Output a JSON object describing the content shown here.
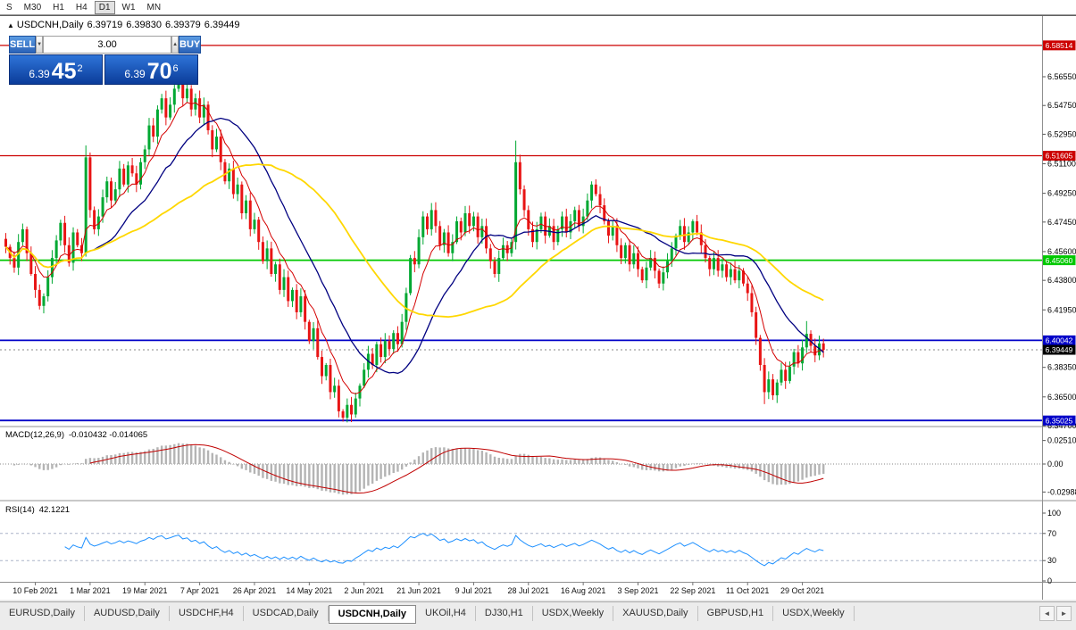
{
  "icons": {
    "marker": "▲",
    "spinner_up": "▲",
    "spinner_down": "▼",
    "tab_left": "◄",
    "tab_right": "►"
  },
  "toolbar": {
    "buttons": [
      "S",
      "M30",
      "H1",
      "H4",
      "D1",
      "W1",
      "MN"
    ],
    "active": "D1"
  },
  "chart": {
    "symbol_period": "USDCNH,Daily",
    "open": "6.39719",
    "high": "6.39830",
    "low": "6.39379",
    "close": "6.39449"
  },
  "one_click": {
    "sell_label": "SELL",
    "buy_label": "BUY",
    "volume": "3.00",
    "bid_small": "6.39",
    "bid_big": "45",
    "bid_sup": "2",
    "ask_small": "6.39",
    "ask_big": "70",
    "ask_sup": "6"
  },
  "chart_data": {
    "type": "candlestick",
    "symbol": "USDCNH",
    "period": "Daily",
    "candle_colors": {
      "up": "#00a832",
      "down": "#e81414"
    },
    "closes": [
      6.459,
      6.452,
      6.446,
      6.462,
      6.47,
      6.455,
      6.442,
      6.432,
      6.422,
      6.428,
      6.44,
      6.452,
      6.463,
      6.474,
      6.46,
      6.449,
      6.468,
      6.46,
      6.455,
      6.515,
      6.482,
      6.47,
      6.478,
      6.49,
      6.5,
      6.488,
      6.495,
      6.508,
      6.498,
      6.51,
      6.505,
      6.498,
      6.512,
      6.52,
      6.535,
      6.528,
      6.545,
      6.552,
      6.54,
      6.548,
      6.558,
      6.565,
      6.552,
      6.558,
      6.545,
      6.552,
      6.54,
      6.548,
      6.532,
      6.52,
      6.528,
      6.512,
      6.5,
      6.508,
      6.492,
      6.498,
      6.48,
      6.488,
      6.47,
      6.476,
      6.462,
      6.45,
      6.458,
      6.442,
      6.448,
      6.432,
      6.44,
      6.425,
      6.432,
      6.418,
      6.428,
      6.412,
      6.4,
      6.408,
      6.39,
      6.378,
      6.385,
      6.368,
      6.372,
      6.356,
      6.352,
      6.36,
      6.354,
      6.364,
      6.372,
      6.382,
      6.392,
      6.385,
      6.398,
      6.39,
      6.4,
      6.395,
      6.405,
      6.398,
      6.412,
      6.43,
      6.452,
      6.448,
      6.465,
      6.478,
      6.47,
      6.482,
      6.472,
      6.46,
      6.468,
      6.455,
      6.462,
      6.475,
      6.468,
      6.48,
      6.472,
      6.478,
      6.465,
      6.472,
      6.458,
      6.45,
      6.442,
      6.452,
      6.46,
      6.455,
      6.462,
      6.512,
      6.495,
      6.482,
      6.47,
      6.462,
      6.47,
      6.478,
      6.466,
      6.472,
      6.462,
      6.47,
      6.478,
      6.468,
      6.475,
      6.482,
      6.472,
      6.478,
      6.488,
      6.498,
      6.492,
      6.485,
      6.475,
      6.466,
      6.472,
      6.46,
      6.452,
      6.46,
      6.448,
      6.455,
      6.445,
      6.438,
      6.446,
      6.452,
      6.444,
      6.436,
      6.443,
      6.45,
      6.458,
      6.466,
      6.472,
      6.462,
      6.468,
      6.475,
      6.468,
      6.46,
      6.452,
      6.445,
      6.452,
      6.444,
      6.448,
      6.44,
      6.445,
      6.438,
      6.444,
      6.436,
      6.43,
      6.418,
      6.402,
      6.385,
      6.368,
      6.376,
      6.366,
      6.374,
      6.382,
      6.375,
      6.384,
      6.393,
      6.386,
      6.396,
      6.4045,
      6.397,
      6.391,
      6.3985,
      6.3945
    ],
    "wick_overrides": {
      "19": {
        "high": 6.5225
      },
      "41": {
        "high": 6.5785
      },
      "80": {
        "low": 6.3495
      },
      "121": {
        "high": 6.5255
      },
      "180": {
        "low": 6.3605
      },
      "190": {
        "high": 6.4125
      }
    },
    "x_labels": [
      {
        "i": 7,
        "t": "10 Feb 2021"
      },
      {
        "i": 20,
        "t": "1 Mar 2021"
      },
      {
        "i": 33,
        "t": "19 Mar 2021"
      },
      {
        "i": 46,
        "t": "7 Apr 2021"
      },
      {
        "i": 59,
        "t": "26 Apr 2021"
      },
      {
        "i": 72,
        "t": "14 May 2021"
      },
      {
        "i": 85,
        "t": "2 Jun 2021"
      },
      {
        "i": 98,
        "t": "21 Jun 2021"
      },
      {
        "i": 111,
        "t": "9 Jul 2021"
      },
      {
        "i": 124,
        "t": "28 Jul 2021"
      },
      {
        "i": 137,
        "t": "16 Aug 2021"
      },
      {
        "i": 150,
        "t": "3 Sep 2021"
      },
      {
        "i": 163,
        "t": "22 Sep 2021"
      },
      {
        "i": 176,
        "t": "11 Oct 2021"
      },
      {
        "i": 189,
        "t": "29 Oct 2021"
      }
    ],
    "price_axis_labels": [
      {
        "t": "6.56550",
        "p": 6.5655
      },
      {
        "t": "6.54750",
        "p": 6.5475
      },
      {
        "t": "6.52950",
        "p": 6.5295
      },
      {
        "t": "6.51100",
        "p": 6.511
      },
      {
        "t": "6.49250",
        "p": 6.4925
      },
      {
        "t": "6.47450",
        "p": 6.4745
      },
      {
        "t": "6.45600",
        "p": 6.456
      },
      {
        "t": "6.43800",
        "p": 6.438
      },
      {
        "t": "6.41950",
        "p": 6.4195
      },
      {
        "t": "6.40150",
        "p": 6.4015
      },
      {
        "t": "6.38350",
        "p": 6.3835
      },
      {
        "t": "6.36500",
        "p": 6.365
      },
      {
        "t": "6.34700",
        "p": 6.347
      }
    ],
    "hlines": [
      {
        "price": 6.58514,
        "label": "6.58514",
        "color": "#cc0000",
        "width": 1.2
      },
      {
        "price": 6.51605,
        "label": "6.51605",
        "color": "#cc0000",
        "width": 1.2
      },
      {
        "price": 6.4506,
        "label": "6.45060",
        "color": "#00c800",
        "width": 1.8
      },
      {
        "price": 6.40042,
        "label": "6.40042",
        "color": "#0000c8",
        "width": 1.8
      },
      {
        "price": 6.35025,
        "label": "6.35025",
        "color": "#0000c8",
        "width": 1.8
      }
    ],
    "current_price": {
      "price": 6.39449,
      "label": "6.39449",
      "color": "#000000"
    },
    "indicators": {
      "ma": [
        {
          "type": "ema",
          "period": 8,
          "color": "#d40000",
          "width": 1
        },
        {
          "type": "sma",
          "period": 20,
          "color": "#000080",
          "width": 1.3
        },
        {
          "type": "sma",
          "period": 45,
          "color": "#ffd700",
          "width": 1.8
        }
      ],
      "macd": {
        "label": "MACD(12,26,9)",
        "values": "-0.010432 -0.014065",
        "fast": 12,
        "slow": 26,
        "signal_period": 9,
        "hist_color": "#b4b4b4",
        "signal_color": "#c00000",
        "axis_labels": [
          {
            "t": "0.02510",
            "v": 0.0251
          },
          {
            "t": "0.00",
            "v": 0
          },
          {
            "t": "-0.02988",
            "v": -0.02988
          }
        ]
      },
      "rsi": {
        "label": "RSI(14)",
        "value": "42.1221",
        "period": 14,
        "color": "#1e90ff",
        "levels": [
          70,
          30
        ],
        "axis_labels": [
          {
            "t": "100",
            "v": 100
          },
          {
            "t": "70",
            "v": 70
          },
          {
            "t": "30",
            "v": 30
          },
          {
            "t": "0",
            "v": 0
          }
        ]
      }
    }
  },
  "tabs": {
    "items": [
      "EURUSD,Daily",
      "AUDUSD,Daily",
      "USDCHF,H4",
      "USDCAD,Daily",
      "USDCNH,Daily",
      "UKOil,H4",
      "DJ30,H1",
      "USDX,Weekly",
      "XAUUSD,Daily",
      "GBPUSD,H1",
      "USDX,Weekly"
    ],
    "active_index": 4
  }
}
